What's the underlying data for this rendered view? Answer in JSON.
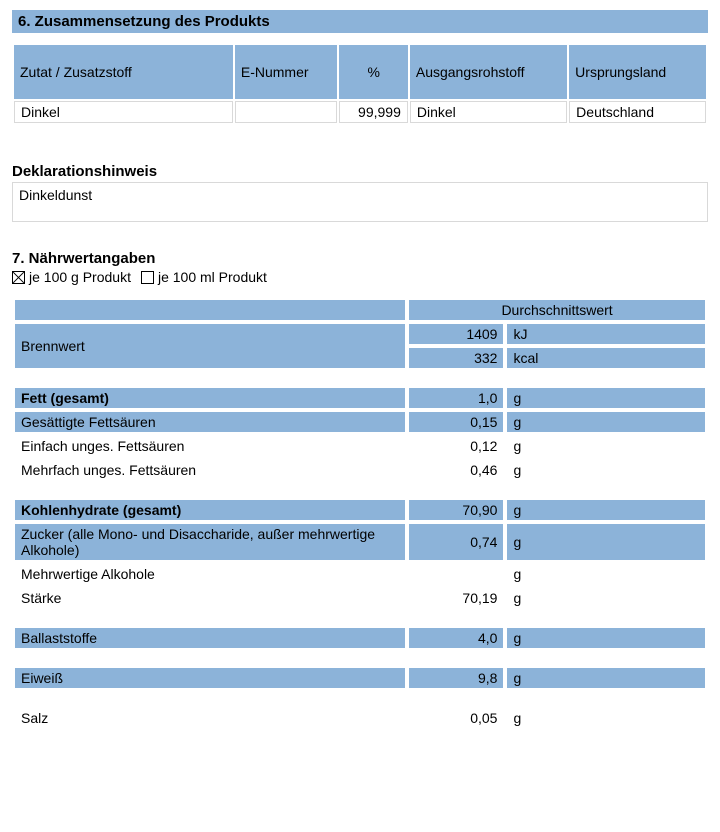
{
  "section6": {
    "title": "6. Zusammensetzung des Produkts",
    "columns": [
      "Zutat / Zusatzstoff",
      "E-Nummer",
      "%",
      "Ausgangsrohstoff",
      "Ursprungsland"
    ],
    "col_widths_pct": [
      32,
      15,
      10,
      23,
      20
    ],
    "rows": [
      {
        "ingredient": "Dinkel",
        "enumber": "",
        "percent": "99,999",
        "raw": "Dinkel",
        "origin": "Deutschland"
      }
    ],
    "decl_label": "Deklarationshinweis",
    "decl_value": "Dinkeldunst"
  },
  "section7": {
    "title": "7. Nährwertangaben",
    "per100g_label": "je 100 g Produkt",
    "per100ml_label": "je 100 ml Produkt",
    "per100g_checked": true,
    "per100ml_checked": false,
    "avg_header": "Durchschnittswert",
    "energy_label": "Brennwert",
    "energy": [
      {
        "value": "1409",
        "unit": "kJ"
      },
      {
        "value": "332",
        "unit": "kcal"
      }
    ],
    "groups": [
      [
        {
          "label": "Fett (gesamt)",
          "value": "1,0",
          "unit": "g",
          "bold": true,
          "blue": true
        },
        {
          "label": "Gesättigte Fettsäuren",
          "value": "0,15",
          "unit": "g",
          "bold": false,
          "blue": true
        },
        {
          "label": "Einfach unges. Fettsäuren",
          "value": "0,12",
          "unit": "g",
          "bold": false,
          "blue": false
        },
        {
          "label": "Mehrfach unges. Fettsäuren",
          "value": "0,46",
          "unit": "g",
          "bold": false,
          "blue": false
        }
      ],
      [
        {
          "label": "Kohlenhydrate (gesamt)",
          "value": "70,90",
          "unit": "g",
          "bold": true,
          "blue": true
        },
        {
          "label": "Zucker (alle Mono- und Disaccharide, außer mehrwertige Alkohole)",
          "value": "0,74",
          "unit": "g",
          "bold": false,
          "blue": true
        },
        {
          "label": "Mehrwertige Alkohole",
          "value": "",
          "unit": "g",
          "bold": false,
          "blue": false
        },
        {
          "label": "Stärke",
          "value": "70,19",
          "unit": "g",
          "bold": false,
          "blue": false
        }
      ],
      [
        {
          "label": "Ballaststoffe",
          "value": "4,0",
          "unit": "g",
          "bold": false,
          "blue": true
        }
      ],
      [
        {
          "label": "Eiweiß",
          "value": "9,8",
          "unit": "g",
          "bold": false,
          "blue": true
        }
      ],
      [
        {
          "label": "Salz",
          "value": "0,05",
          "unit": "g",
          "bold": false,
          "blue": false
        }
      ]
    ]
  },
  "colors": {
    "header_bg": "#8cb3d9",
    "cell_border": "#d9d9d9",
    "background": "#ffffff"
  }
}
